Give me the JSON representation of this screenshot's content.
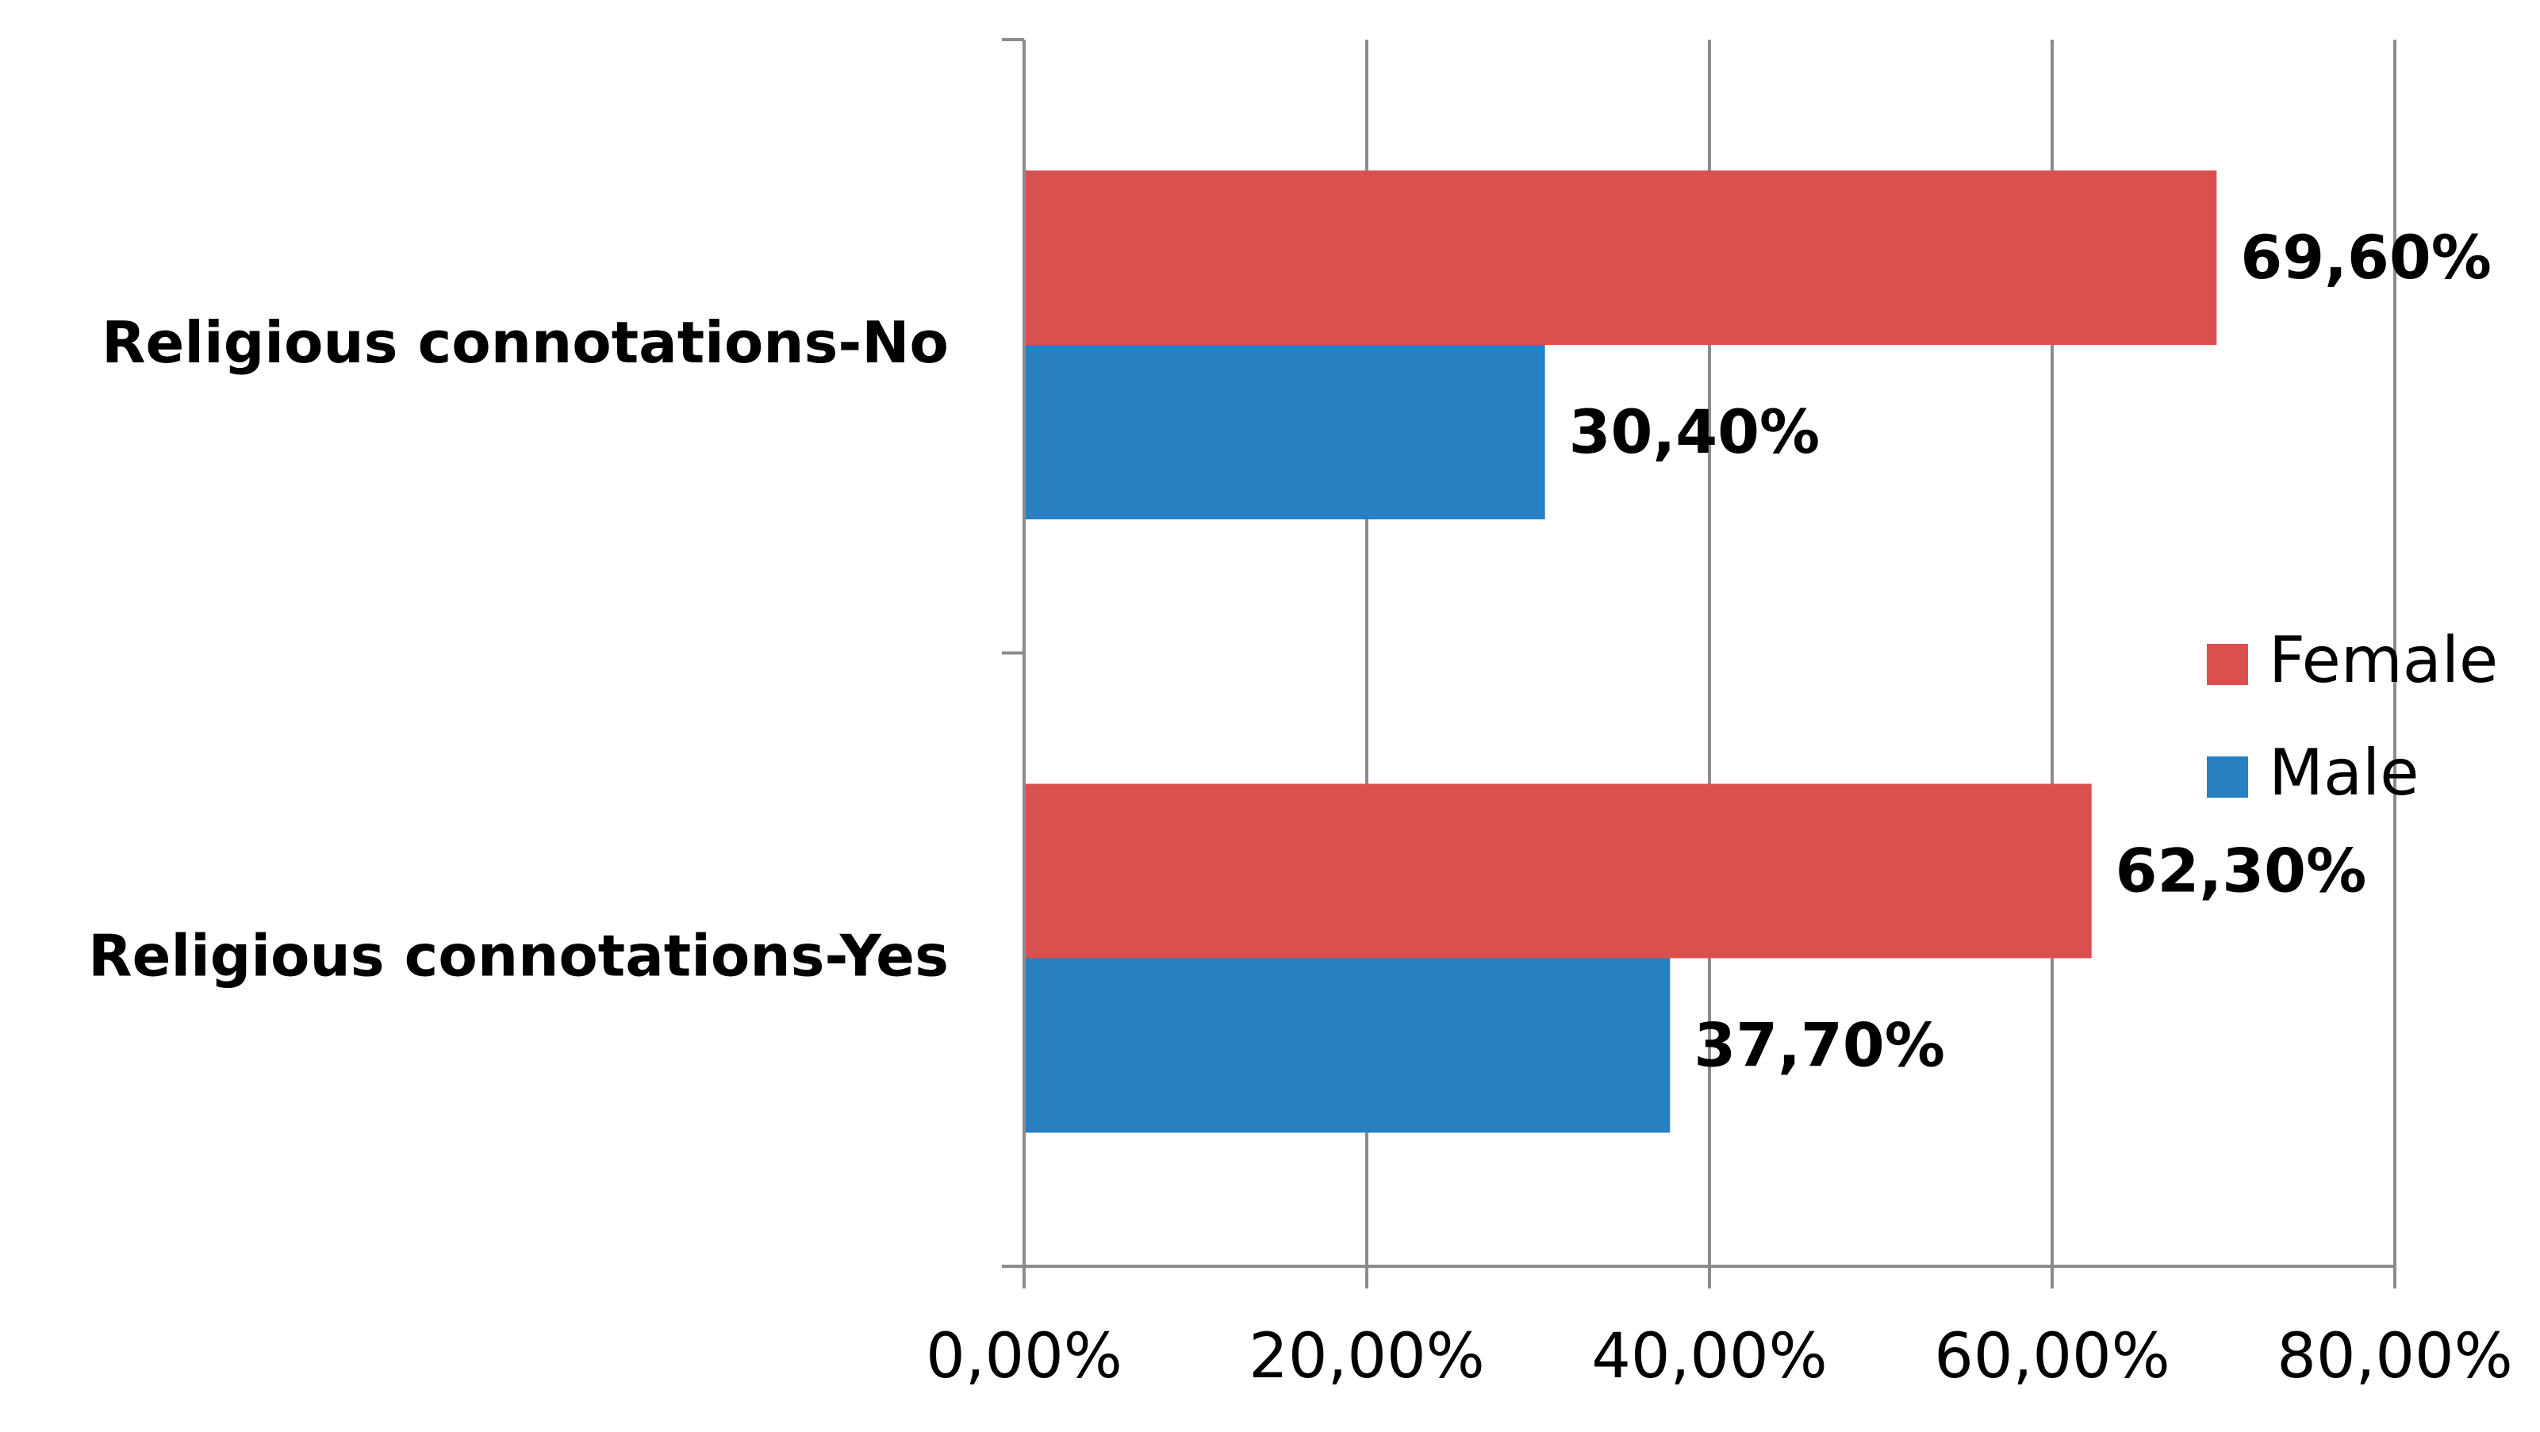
{
  "chart_data": {
    "type": "bar",
    "orientation": "horizontal",
    "categories": [
      "Religious connotations-No",
      "Religious connotations-Yes"
    ],
    "series": [
      {
        "name": "Female",
        "values": [
          69.6,
          62.3
        ],
        "labels": [
          "69,60%",
          "62,30%"
        ],
        "color": "#d9504f"
      },
      {
        "name": "Male",
        "values": [
          30.4,
          37.7
        ],
        "labels": [
          "30,40%",
          "37,70%"
        ],
        "color": "#2680c2"
      }
    ],
    "x_ticks": [
      0,
      20,
      40,
      60,
      80
    ],
    "x_tick_labels": [
      "0,00%",
      "20,00%",
      "40,00%",
      "60,00%",
      "80,00%"
    ],
    "xlim": [
      0,
      80
    ],
    "grid": "vertical",
    "legend": {
      "position": "right",
      "entries": [
        "Female",
        "Male"
      ]
    },
    "title": "",
    "xlabel": "",
    "ylabel": ""
  }
}
